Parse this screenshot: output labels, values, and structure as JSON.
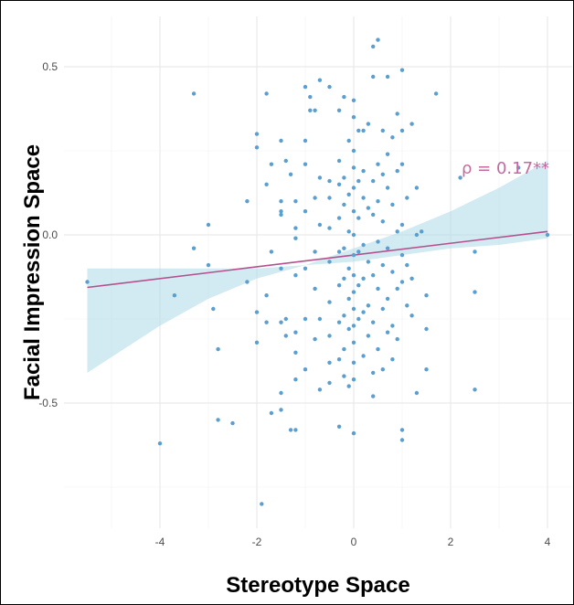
{
  "chart_data": {
    "type": "scatter",
    "title": "",
    "xlabel": "Stereotype Space",
    "ylabel": "Facial Impression Space",
    "xlim": [
      -5.6,
      4.3
    ],
    "ylim": [
      -0.88,
      0.62
    ],
    "x_ticks": [
      -4,
      -2,
      0,
      2,
      4
    ],
    "x_tick_labels": [
      "-4",
      "-2",
      "0",
      "2",
      "4"
    ],
    "y_ticks": [
      -0.5,
      0.0,
      0.5
    ],
    "y_tick_labels": [
      "-0.5",
      "0.0",
      "0.5"
    ],
    "grid": true,
    "annotation": "ρ = 0.17**",
    "regression": {
      "intercept": -0.06,
      "slope": 0.0175
    },
    "confidence_band": {
      "x": [
        -5.5,
        -4,
        -3,
        -2,
        -1,
        0,
        1,
        2,
        3,
        4
      ],
      "upper": [
        -0.1,
        -0.1,
        -0.1,
        -0.1,
        -0.09,
        -0.04,
        0.01,
        0.07,
        0.14,
        0.22
      ],
      "lower": [
        -0.41,
        -0.27,
        -0.19,
        -0.13,
        -0.09,
        -0.08,
        -0.06,
        -0.04,
        -0.03,
        -0.01
      ]
    },
    "colors": {
      "points": "#5a9fcf",
      "line": "#b5508e",
      "band": "#add8e6",
      "annotation": "#c46aa0"
    },
    "points": [
      [
        -5.5,
        -0.14
      ],
      [
        -4.0,
        -0.62
      ],
      [
        -3.7,
        -0.18
      ],
      [
        -3.3,
        0.42
      ],
      [
        -3.3,
        -0.04
      ],
      [
        -3.0,
        0.03
      ],
      [
        -3.0,
        -0.09
      ],
      [
        -2.9,
        -0.22
      ],
      [
        -2.8,
        -0.34
      ],
      [
        -2.8,
        -0.55
      ],
      [
        -2.5,
        -0.56
      ],
      [
        -2.2,
        0.1
      ],
      [
        -2.2,
        -0.14
      ],
      [
        -2.0,
        0.3
      ],
      [
        -2.0,
        0.26
      ],
      [
        -2.0,
        -0.23
      ],
      [
        -2.0,
        -0.32
      ],
      [
        -1.9,
        -0.8
      ],
      [
        -1.8,
        0.42
      ],
      [
        -1.8,
        0.15
      ],
      [
        -1.8,
        -0.18
      ],
      [
        -1.8,
        -0.26
      ],
      [
        -1.7,
        0.21
      ],
      [
        -1.7,
        -0.05
      ],
      [
        -1.7,
        -0.53
      ],
      [
        -1.5,
        0.28
      ],
      [
        -1.5,
        0.1
      ],
      [
        -1.5,
        0.07
      ],
      [
        -1.5,
        0.06
      ],
      [
        -1.5,
        -0.1
      ],
      [
        -1.5,
        -0.26
      ],
      [
        -1.5,
        -0.47
      ],
      [
        -1.5,
        -0.52
      ],
      [
        -1.4,
        0.22
      ],
      [
        -1.4,
        -0.25
      ],
      [
        -1.4,
        -0.3
      ],
      [
        -1.3,
        0.18
      ],
      [
        -1.3,
        -0.58
      ],
      [
        -1.2,
        0.1
      ],
      [
        -1.2,
        0.02
      ],
      [
        -1.2,
        -0.01
      ],
      [
        -1.2,
        -0.12
      ],
      [
        -1.2,
        -0.29
      ],
      [
        -1.2,
        -0.35
      ],
      [
        -1.2,
        -0.43
      ],
      [
        -1.2,
        -0.58
      ],
      [
        -1.0,
        0.44
      ],
      [
        -1.0,
        0.28
      ],
      [
        -1.0,
        0.21
      ],
      [
        -1.0,
        0.07
      ],
      [
        -1.0,
        -0.1
      ],
      [
        -1.0,
        -0.25
      ],
      [
        -1.0,
        -0.4
      ],
      [
        -0.9,
        0.41
      ],
      [
        -0.9,
        0.37
      ],
      [
        -0.8,
        0.37
      ],
      [
        -0.8,
        0.11
      ],
      [
        -0.8,
        -0.05
      ],
      [
        -0.8,
        -0.16
      ],
      [
        -0.8,
        -0.31
      ],
      [
        -0.7,
        0.46
      ],
      [
        -0.7,
        0.17
      ],
      [
        -0.7,
        0.03
      ],
      [
        -0.7,
        -0.25
      ],
      [
        -0.7,
        -0.46
      ],
      [
        -0.5,
        0.44
      ],
      [
        -0.5,
        0.16
      ],
      [
        -0.5,
        0.11
      ],
      [
        -0.5,
        0.02
      ],
      [
        -0.5,
        -0.08
      ],
      [
        -0.5,
        -0.2
      ],
      [
        -0.5,
        -0.3
      ],
      [
        -0.5,
        -0.38
      ],
      [
        -0.5,
        -0.44
      ],
      [
        -0.3,
        0.37
      ],
      [
        -0.3,
        0.22
      ],
      [
        -0.3,
        0.15
      ],
      [
        -0.3,
        0.05
      ],
      [
        -0.3,
        -0.05
      ],
      [
        -0.3,
        -0.15
      ],
      [
        -0.3,
        -0.26
      ],
      [
        -0.3,
        -0.37
      ],
      [
        -0.3,
        -0.57
      ],
      [
        -0.2,
        0.41
      ],
      [
        -0.2,
        0.17
      ],
      [
        -0.2,
        0.09
      ],
      [
        -0.2,
        -0.04
      ],
      [
        -0.2,
        -0.13
      ],
      [
        -0.2,
        -0.24
      ],
      [
        -0.2,
        -0.34
      ],
      [
        -0.2,
        -0.42
      ],
      [
        -0.1,
        0.28
      ],
      [
        -0.1,
        0.12
      ],
      [
        -0.1,
        0.01
      ],
      [
        -0.1,
        -0.1
      ],
      [
        -0.1,
        -0.19
      ],
      [
        -0.1,
        -0.28
      ],
      [
        -0.1,
        -0.45
      ],
      [
        0.0,
        0.4
      ],
      [
        0.0,
        0.35
      ],
      [
        0.0,
        0.25
      ],
      [
        0.0,
        0.2
      ],
      [
        0.0,
        0.14
      ],
      [
        0.0,
        0.07
      ],
      [
        0.0,
        0.0
      ],
      [
        0.0,
        -0.06
      ],
      [
        0.0,
        -0.12
      ],
      [
        0.0,
        -0.17
      ],
      [
        0.0,
        -0.22
      ],
      [
        0.0,
        -0.27
      ],
      [
        0.0,
        -0.32
      ],
      [
        0.0,
        -0.38
      ],
      [
        0.0,
        -0.43
      ],
      [
        0.0,
        -0.59
      ],
      [
        0.1,
        0.31
      ],
      [
        0.1,
        0.16
      ],
      [
        0.1,
        0.05
      ],
      [
        0.1,
        -0.05
      ],
      [
        0.1,
        -0.15
      ],
      [
        0.1,
        -0.25
      ],
      [
        0.2,
        0.31
      ],
      [
        0.2,
        0.19
      ],
      [
        0.2,
        0.11
      ],
      [
        0.2,
        -0.03
      ],
      [
        0.2,
        -0.13
      ],
      [
        0.2,
        -0.23
      ],
      [
        0.2,
        -0.36
      ],
      [
        0.3,
        0.33
      ],
      [
        0.3,
        0.08
      ],
      [
        0.3,
        -0.08
      ],
      [
        0.3,
        -0.21
      ],
      [
        0.3,
        -0.3
      ],
      [
        0.4,
        0.56
      ],
      [
        0.4,
        0.47
      ],
      [
        0.4,
        0.16
      ],
      [
        0.4,
        0.06
      ],
      [
        0.4,
        -0.12
      ],
      [
        0.4,
        -0.26
      ],
      [
        0.4,
        -0.41
      ],
      [
        0.4,
        -0.48
      ],
      [
        0.5,
        0.58
      ],
      [
        0.5,
        0.21
      ],
      [
        0.5,
        0.1
      ],
      [
        0.5,
        -0.02
      ],
      [
        0.5,
        -0.16
      ],
      [
        0.5,
        -0.34
      ],
      [
        0.6,
        0.31
      ],
      [
        0.6,
        0.18
      ],
      [
        0.6,
        0.04
      ],
      [
        0.6,
        -0.09
      ],
      [
        0.6,
        -0.22
      ],
      [
        0.6,
        -0.4
      ],
      [
        0.7,
        0.47
      ],
      [
        0.7,
        0.24
      ],
      [
        0.7,
        0.14
      ],
      [
        0.7,
        -0.04
      ],
      [
        0.7,
        -0.19
      ],
      [
        0.7,
        -0.29
      ],
      [
        0.8,
        0.29
      ],
      [
        0.8,
        0.09
      ],
      [
        0.8,
        -0.11
      ],
      [
        0.8,
        -0.27
      ],
      [
        0.8,
        -0.37
      ],
      [
        0.9,
        0.36
      ],
      [
        0.9,
        0.19
      ],
      [
        0.9,
        0.01
      ],
      [
        0.9,
        -0.16
      ],
      [
        0.9,
        -0.31
      ],
      [
        1.0,
        0.49
      ],
      [
        1.0,
        0.31
      ],
      [
        1.0,
        0.21
      ],
      [
        1.0,
        0.03
      ],
      [
        1.0,
        -0.06
      ],
      [
        1.0,
        -0.14
      ],
      [
        1.0,
        -0.58
      ],
      [
        1.0,
        -0.61
      ],
      [
        1.1,
        0.11
      ],
      [
        1.1,
        -0.09
      ],
      [
        1.1,
        -0.21
      ],
      [
        1.2,
        0.33
      ],
      [
        1.2,
        -0.13
      ],
      [
        1.2,
        -0.24
      ],
      [
        1.3,
        0.14
      ],
      [
        1.3,
        0.0
      ],
      [
        1.3,
        -0.47
      ],
      [
        1.4,
        0.01
      ],
      [
        1.5,
        -0.18
      ],
      [
        1.5,
        -0.28
      ],
      [
        1.5,
        -0.4
      ],
      [
        1.7,
        0.42
      ],
      [
        2.2,
        0.17
      ],
      [
        2.5,
        -0.05
      ],
      [
        2.5,
        -0.17
      ],
      [
        2.5,
        -0.46
      ],
      [
        3.4,
        0.2
      ],
      [
        4.0,
        0.0
      ]
    ]
  }
}
